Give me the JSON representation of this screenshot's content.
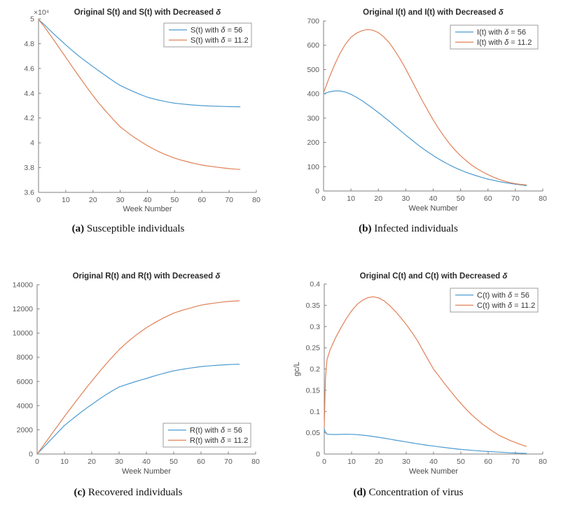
{
  "figure": {
    "background": "#ffffff",
    "captions": [
      {
        "label": "(a)",
        "text": "Susceptible individuals"
      },
      {
        "label": "(b)",
        "text": "Infected individuals"
      },
      {
        "label": "(c)",
        "text": "Recovered individuals"
      },
      {
        "label": "(d)",
        "text": "Concentration of virus"
      }
    ]
  },
  "colors": {
    "series_blue": "#4d9bd1",
    "series_orange": "#e08156",
    "axis": "#7f7f7f",
    "tick_label": "#595959",
    "axis_label": "#4c4c4c",
    "title": "#2b2b2b",
    "legend_text": "#333333",
    "legend_border": "#9c9c9c"
  },
  "chart_data": [
    {
      "type": "line",
      "title": "Original S(t) and S(t) with Decreased δ",
      "xlabel": "Week Number",
      "ylabel": "",
      "y_multiplier": "×10⁴",
      "xlim": [
        0,
        80
      ],
      "ylim": [
        36000,
        50000
      ],
      "grid": false,
      "xticks": {
        "values": [
          0,
          10,
          20,
          30,
          40,
          50,
          60,
          70,
          80
        ],
        "labels": [
          "0",
          "10",
          "20",
          "30",
          "40",
          "50",
          "60",
          "70",
          "80"
        ]
      },
      "yticks": {
        "values": [
          36000,
          38000,
          40000,
          42000,
          44000,
          46000,
          48000,
          50000
        ],
        "labels": [
          "3.6",
          "3.8",
          "4",
          "4.2",
          "4.4",
          "4.6",
          "4.8",
          "5"
        ]
      },
      "legend": {
        "position": "top-right"
      },
      "x": [
        0,
        2,
        4,
        6,
        8,
        10,
        12,
        14,
        16,
        18,
        20,
        22,
        24,
        26,
        28,
        30,
        32,
        34,
        36,
        38,
        40,
        42,
        44,
        46,
        48,
        50,
        52,
        54,
        56,
        58,
        60,
        62,
        64,
        66,
        68,
        70,
        72,
        74
      ],
      "series": [
        {
          "name": "S(t) with δ = 56",
          "color": "#4d9bd1",
          "y": [
            49950,
            49560,
            49130,
            48710,
            48300,
            47900,
            47520,
            47150,
            46800,
            46470,
            46150,
            45830,
            45520,
            45210,
            44910,
            44630,
            44420,
            44220,
            44030,
            43850,
            43680,
            43560,
            43450,
            43360,
            43270,
            43200,
            43150,
            43110,
            43060,
            43030,
            43000,
            42980,
            42960,
            42950,
            42930,
            42920,
            42915,
            42910
          ]
        },
        {
          "name": "S(t) with δ = 11.2",
          "color": "#e08156",
          "y": [
            49950,
            49400,
            48790,
            48170,
            47540,
            46900,
            46260,
            45630,
            45010,
            44400,
            43800,
            43250,
            42730,
            42230,
            41750,
            41300,
            40950,
            40620,
            40320,
            40040,
            39770,
            39530,
            39310,
            39110,
            38930,
            38760,
            38630,
            38510,
            38400,
            38300,
            38210,
            38140,
            38080,
            38020,
            37970,
            37920,
            37880,
            37850
          ]
        }
      ]
    },
    {
      "type": "line",
      "title": "Original I(t) and I(t) with Decreased δ",
      "xlabel": "Week Number",
      "ylabel": "",
      "xlim": [
        0,
        80
      ],
      "ylim": [
        0,
        700
      ],
      "grid": false,
      "xticks": {
        "values": [
          0,
          10,
          20,
          30,
          40,
          50,
          60,
          70,
          80
        ],
        "labels": [
          "0",
          "10",
          "20",
          "30",
          "40",
          "50",
          "60",
          "70",
          "80"
        ]
      },
      "yticks": {
        "values": [
          0,
          100,
          200,
          300,
          400,
          500,
          600,
          700
        ],
        "labels": [
          "0",
          "100",
          "200",
          "300",
          "400",
          "500",
          "600",
          "700"
        ]
      },
      "legend": {
        "position": "top-right"
      },
      "x": [
        0,
        2,
        4,
        6,
        8,
        10,
        12,
        14,
        16,
        18,
        20,
        22,
        24,
        26,
        28,
        30,
        32,
        34,
        36,
        38,
        40,
        42,
        44,
        46,
        48,
        50,
        52,
        54,
        56,
        58,
        60,
        62,
        64,
        66,
        68,
        70,
        72,
        74
      ],
      "series": [
        {
          "name": "I(t) with δ = 56",
          "color": "#4d9bd1",
          "y": [
            400,
            408,
            412,
            412,
            407,
            398,
            386,
            372,
            356,
            340,
            323,
            305,
            287,
            268,
            249,
            230,
            212,
            194,
            177,
            161,
            146,
            132,
            119,
            107,
            96,
            86,
            77,
            69,
            62,
            55,
            49,
            44,
            39,
            35,
            31,
            28,
            25,
            22
          ]
        },
        {
          "name": "I(t) with δ = 11.2",
          "color": "#e08156",
          "y": [
            405,
            465,
            520,
            567,
            605,
            633,
            650,
            660,
            665,
            662,
            652,
            634,
            610,
            578,
            542,
            502,
            459,
            416,
            373,
            332,
            293,
            257,
            224,
            194,
            168,
            145,
            125,
            107,
            92,
            79,
            67,
            57,
            48,
            41,
            35,
            30,
            27,
            25
          ]
        }
      ]
    },
    {
      "type": "line",
      "title": "Original R(t) and R(t) with Decreased δ",
      "xlabel": "Week Number",
      "ylabel": "",
      "xlim": [
        0,
        80
      ],
      "ylim": [
        0,
        14000
      ],
      "grid": false,
      "xticks": {
        "values": [
          0,
          10,
          20,
          30,
          40,
          50,
          60,
          70,
          80
        ],
        "labels": [
          "0",
          "10",
          "20",
          "30",
          "40",
          "50",
          "60",
          "70",
          "80"
        ]
      },
      "yticks": {
        "values": [
          0,
          2000,
          4000,
          6000,
          8000,
          10000,
          12000,
          14000
        ],
        "labels": [
          "0",
          "2000",
          "4000",
          "6000",
          "8000",
          "10000",
          "12000",
          "14000"
        ]
      },
      "legend": {
        "position": "bottom-right"
      },
      "x": [
        0,
        2,
        4,
        6,
        8,
        10,
        12,
        14,
        16,
        18,
        20,
        22,
        24,
        26,
        28,
        30,
        32,
        34,
        36,
        38,
        40,
        42,
        44,
        46,
        48,
        50,
        52,
        54,
        56,
        58,
        60,
        62,
        64,
        66,
        68,
        70,
        72,
        74
      ],
      "series": [
        {
          "name": "R(t) with δ = 56",
          "color": "#4d9bd1",
          "y": [
            0,
            470,
            945,
            1420,
            1890,
            2360,
            2730,
            3090,
            3440,
            3775,
            4100,
            4420,
            4725,
            5015,
            5285,
            5540,
            5695,
            5845,
            5987,
            6122,
            6250,
            6390,
            6525,
            6650,
            6770,
            6880,
            6960,
            7035,
            7105,
            7170,
            7230,
            7270,
            7307,
            7340,
            7371,
            7400,
            7417,
            7430
          ]
        },
        {
          "name": "R(t) with δ = 11.2",
          "color": "#e08156",
          "y": [
            0,
            620,
            1240,
            1860,
            2480,
            3100,
            3700,
            4295,
            4885,
            5465,
            6020,
            6580,
            7120,
            7640,
            8140,
            8620,
            9040,
            9430,
            9795,
            10130,
            10440,
            10720,
            10980,
            11220,
            11440,
            11650,
            11800,
            11940,
            12070,
            12195,
            12310,
            12385,
            12455,
            12515,
            12570,
            12620,
            12645,
            12670
          ]
        }
      ]
    },
    {
      "type": "line",
      "title": "Original C(t) and C(t) with Decreased δ",
      "xlabel": "Week Number",
      "ylabel": "gc/L",
      "xlim": [
        0,
        80
      ],
      "ylim": [
        0,
        0.4
      ],
      "grid": false,
      "xticks": {
        "values": [
          0,
          10,
          20,
          30,
          40,
          50,
          60,
          70,
          80
        ],
        "labels": [
          "0",
          "10",
          "20",
          "30",
          "40",
          "50",
          "60",
          "70",
          "80"
        ]
      },
      "yticks": {
        "values": [
          0,
          0.05,
          0.1,
          0.15,
          0.2,
          0.25,
          0.3,
          0.35,
          0.4
        ],
        "labels": [
          "0",
          "0.05",
          "0.1",
          "0.15",
          "0.2",
          "0.25",
          "0.3",
          "0.35",
          "0.4"
        ]
      },
      "legend": {
        "position": "top-right"
      },
      "series": [
        {
          "name": "C(t) with δ = 56",
          "color": "#4d9bd1",
          "x": [
            0,
            0.5,
            1,
            2,
            4,
            6,
            8,
            10,
            12,
            14,
            16,
            18,
            20,
            22,
            24,
            26,
            28,
            30,
            32,
            34,
            36,
            38,
            40,
            42,
            44,
            46,
            48,
            50,
            52,
            54,
            56,
            58,
            60,
            62,
            64,
            66,
            68,
            70,
            72,
            74
          ],
          "y": [
            0.0585,
            0.05,
            0.0468,
            0.0462,
            0.046,
            0.0463,
            0.0466,
            0.0465,
            0.0456,
            0.0444,
            0.0429,
            0.0412,
            0.0393,
            0.0372,
            0.035,
            0.0328,
            0.0306,
            0.0284,
            0.0263,
            0.0242,
            0.0223,
            0.0204,
            0.0186,
            0.017,
            0.0154,
            0.0139,
            0.0124,
            0.0109,
            0.0098,
            0.0088,
            0.0078,
            0.0069,
            0.006,
            0.0052,
            0.0045,
            0.0038,
            0.003,
            0.0024,
            0.0019,
            0.0015
          ]
        },
        {
          "name": "C(t) with δ = 11.2",
          "color": "#e08156",
          "x": [
            0,
            0.4,
            1,
            2,
            4,
            6,
            8,
            10,
            12,
            14,
            16,
            18,
            20,
            22,
            24,
            26,
            28,
            30,
            32,
            34,
            36,
            38,
            40,
            42,
            44,
            46,
            48,
            50,
            52,
            54,
            56,
            58,
            60,
            62,
            64,
            66,
            68,
            70,
            72,
            74
          ],
          "y": [
            0.064,
            0.175,
            0.222,
            0.243,
            0.272,
            0.296,
            0.318,
            0.337,
            0.352,
            0.362,
            0.368,
            0.37,
            0.367,
            0.36,
            0.349,
            0.336,
            0.321,
            0.305,
            0.287,
            0.268,
            0.245,
            0.222,
            0.2,
            0.183,
            0.166,
            0.15,
            0.134,
            0.119,
            0.105,
            0.092,
            0.081,
            0.07,
            0.061,
            0.052,
            0.044,
            0.038,
            0.032,
            0.027,
            0.022,
            0.018
          ]
        }
      ]
    }
  ]
}
